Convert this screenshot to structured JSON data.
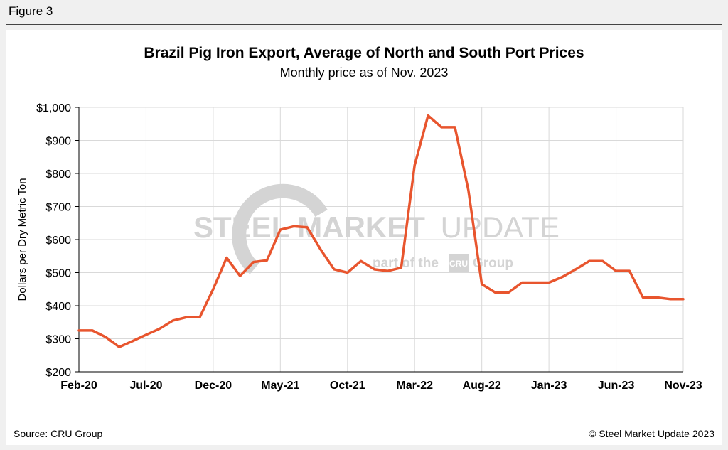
{
  "figure_label": "Figure 3",
  "source": "Source: CRU Group",
  "copyright": "© Steel Market Update 2023",
  "colors": {
    "line": "#e8552e",
    "grid": "#d9d9d9",
    "watermark": "#d4d4d4"
  },
  "watermark": {
    "main_bold": "STEEL MARKET",
    "main_light": "UPDATE",
    "sub_pre": "part of the",
    "sub_badge": "CRU",
    "sub_post": "Group"
  },
  "chart_data": {
    "type": "line",
    "title": "Brazil Pig Iron Export, Average of North and South Port Prices",
    "subtitle": "Monthly price as of Nov. 2023",
    "xlabel": "",
    "ylabel": "Dollars per Dry Metric Ton",
    "ylim": [
      200,
      1000
    ],
    "yticks": [
      200,
      300,
      400,
      500,
      600,
      700,
      800,
      900,
      1000
    ],
    "ytick_labels": [
      "$200",
      "$300",
      "$400",
      "$500",
      "$600",
      "$700",
      "$800",
      "$900",
      "$1,000"
    ],
    "xtick_labels": [
      "Feb-20",
      "Jul-20",
      "Dec-20",
      "May-21",
      "Oct-21",
      "Mar-22",
      "Aug-22",
      "Jan-23",
      "Jun-23",
      "Nov-23"
    ],
    "xtick_step": 5,
    "grid": true,
    "legend": "none",
    "x": [
      "Feb-20",
      "Mar-20",
      "Apr-20",
      "May-20",
      "Jun-20",
      "Jul-20",
      "Aug-20",
      "Sep-20",
      "Oct-20",
      "Nov-20",
      "Dec-20",
      "Jan-21",
      "Feb-21",
      "Mar-21",
      "Apr-21",
      "May-21",
      "Jun-21",
      "Jul-21",
      "Aug-21",
      "Sep-21",
      "Oct-21",
      "Nov-21",
      "Dec-21",
      "Jan-22",
      "Feb-22",
      "Mar-22",
      "Apr-22",
      "May-22",
      "Jun-22",
      "Jul-22",
      "Aug-22",
      "Sep-22",
      "Oct-22",
      "Nov-22",
      "Dec-22",
      "Jan-23",
      "Feb-23",
      "Mar-23",
      "Apr-23",
      "May-23",
      "Jun-23",
      "Jul-23",
      "Aug-23",
      "Sep-23",
      "Oct-23",
      "Nov-23"
    ],
    "series": [
      {
        "values": [
          325,
          325,
          305,
          275,
          293,
          312,
          330,
          355,
          365,
          365,
          450,
          545,
          490,
          532,
          537,
          630,
          640,
          637,
          570,
          510,
          500,
          535,
          510,
          505,
          515,
          825,
          975,
          940,
          940,
          750,
          465,
          440,
          440,
          470,
          470,
          470,
          487,
          510,
          535,
          535,
          505,
          505,
          425,
          425,
          420,
          420
        ]
      }
    ]
  }
}
